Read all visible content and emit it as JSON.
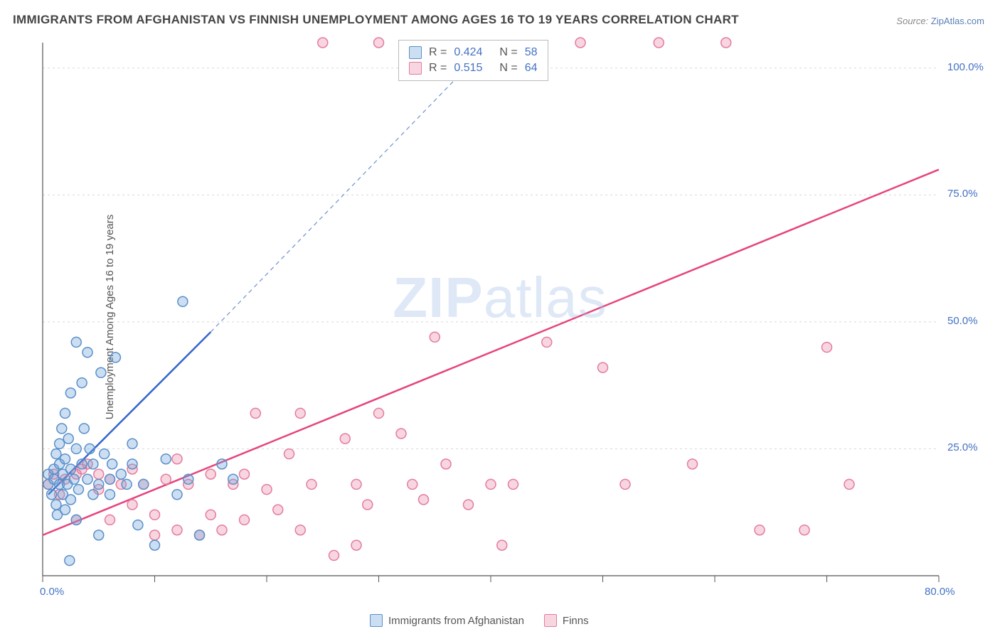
{
  "title": "IMMIGRANTS FROM AFGHANISTAN VS FINNISH UNEMPLOYMENT AMONG AGES 16 TO 19 YEARS CORRELATION CHART",
  "source_label": "Source:",
  "source_value": "ZipAtlas.com",
  "watermark_zip": "ZIP",
  "watermark_atlas": "atlas",
  "y_axis_label": "Unemployment Among Ages 16 to 19 years",
  "chart": {
    "type": "scatter",
    "background_color": "#ffffff",
    "grid_color": "#d8d8d8",
    "axis_color": "#555555",
    "xlim": [
      0,
      80
    ],
    "ylim": [
      0,
      105
    ],
    "x_ticks": [
      0,
      10,
      20,
      30,
      40,
      50,
      60,
      70,
      80
    ],
    "x_tick_labels": {
      "0": "0.0%",
      "80": "80.0%"
    },
    "y_ticks": [
      25,
      50,
      75,
      100
    ],
    "y_tick_labels": {
      "25": "25.0%",
      "50": "50.0%",
      "75": "75.0%",
      "100": "100.0%"
    },
    "marker_radius": 7,
    "marker_stroke_width": 1.5,
    "series": [
      {
        "name": "Immigrants from Afghanistan",
        "color_fill": "rgba(108,163,219,0.35)",
        "color_stroke": "#5a8fc9",
        "R": "0.424",
        "N": "58",
        "trend_line": {
          "x1": 0.5,
          "y1": 16,
          "x2": 15,
          "y2": 48,
          "color": "#3366cc",
          "width": 2.5
        },
        "trend_dash": {
          "x1": 15,
          "y1": 48,
          "x2": 40,
          "y2": 105,
          "color": "#6f8fcf",
          "dash": "6 5",
          "width": 1.2
        },
        "points": [
          [
            0.5,
            18
          ],
          [
            0.5,
            20
          ],
          [
            0.8,
            16
          ],
          [
            1,
            19
          ],
          [
            1,
            21
          ],
          [
            1.2,
            14
          ],
          [
            1.2,
            24
          ],
          [
            1.3,
            12
          ],
          [
            1.5,
            18
          ],
          [
            1.5,
            22
          ],
          [
            1.5,
            26
          ],
          [
            1.7,
            29
          ],
          [
            1.8,
            16
          ],
          [
            1.8,
            20
          ],
          [
            2,
            13
          ],
          [
            2,
            23
          ],
          [
            2,
            32
          ],
          [
            2.2,
            18
          ],
          [
            2.3,
            27
          ],
          [
            2.4,
            3
          ],
          [
            2.5,
            15
          ],
          [
            2.5,
            21
          ],
          [
            2.5,
            36
          ],
          [
            2.8,
            19
          ],
          [
            3,
            11
          ],
          [
            3,
            25
          ],
          [
            3,
            46
          ],
          [
            3.2,
            17
          ],
          [
            3.5,
            22
          ],
          [
            3.5,
            38
          ],
          [
            3.7,
            29
          ],
          [
            4,
            19
          ],
          [
            4,
            44
          ],
          [
            4.2,
            25
          ],
          [
            4.5,
            16
          ],
          [
            4.5,
            22
          ],
          [
            5,
            18
          ],
          [
            5,
            8
          ],
          [
            5.2,
            40
          ],
          [
            5.5,
            24
          ],
          [
            6,
            19
          ],
          [
            6,
            16
          ],
          [
            6.2,
            22
          ],
          [
            6.5,
            43
          ],
          [
            7,
            20
          ],
          [
            7.5,
            18
          ],
          [
            8,
            22
          ],
          [
            8,
            26
          ],
          [
            8.5,
            10
          ],
          [
            9,
            18
          ],
          [
            10,
            6
          ],
          [
            11,
            23
          ],
          [
            12,
            16
          ],
          [
            12.5,
            54
          ],
          [
            13,
            19
          ],
          [
            14,
            8
          ],
          [
            16,
            22
          ],
          [
            17,
            19
          ]
        ]
      },
      {
        "name": "Finns",
        "color_fill": "rgba(230,120,150,0.30)",
        "color_stroke": "#e57ba0",
        "R": "0.515",
        "N": "64",
        "trend_line": {
          "x1": 0,
          "y1": 8,
          "x2": 80,
          "y2": 80,
          "color": "#e6447d",
          "width": 2.5
        },
        "points": [
          [
            0.5,
            18
          ],
          [
            1,
            20
          ],
          [
            1.5,
            16
          ],
          [
            2,
            19
          ],
          [
            3,
            20
          ],
          [
            3,
            11
          ],
          [
            3.5,
            21
          ],
          [
            4,
            22
          ],
          [
            5,
            17
          ],
          [
            5,
            20
          ],
          [
            6,
            19
          ],
          [
            6,
            11
          ],
          [
            7,
            18
          ],
          [
            8,
            21
          ],
          [
            8,
            14
          ],
          [
            9,
            18
          ],
          [
            10,
            8
          ],
          [
            10,
            12
          ],
          [
            11,
            19
          ],
          [
            12,
            9
          ],
          [
            12,
            23
          ],
          [
            13,
            18
          ],
          [
            14,
            8
          ],
          [
            15,
            12
          ],
          [
            15,
            20
          ],
          [
            16,
            9
          ],
          [
            17,
            18
          ],
          [
            18,
            20
          ],
          [
            18,
            11
          ],
          [
            19,
            32
          ],
          [
            20,
            17
          ],
          [
            21,
            13
          ],
          [
            22,
            24
          ],
          [
            23,
            9
          ],
          [
            23,
            32
          ],
          [
            24,
            18
          ],
          [
            25,
            105
          ],
          [
            26,
            4
          ],
          [
            27,
            27
          ],
          [
            28,
            18
          ],
          [
            28,
            6
          ],
          [
            29,
            14
          ],
          [
            30,
            105
          ],
          [
            30,
            32
          ],
          [
            32,
            28
          ],
          [
            33,
            18
          ],
          [
            34,
            15
          ],
          [
            35,
            47
          ],
          [
            36,
            22
          ],
          [
            38,
            14
          ],
          [
            40,
            18
          ],
          [
            41,
            6
          ],
          [
            42,
            18
          ],
          [
            45,
            46
          ],
          [
            48,
            105
          ],
          [
            50,
            41
          ],
          [
            52,
            18
          ],
          [
            55,
            105
          ],
          [
            58,
            22
          ],
          [
            61,
            105
          ],
          [
            64,
            9
          ],
          [
            68,
            9
          ],
          [
            70,
            45
          ],
          [
            72,
            18
          ]
        ]
      }
    ]
  },
  "bottom_legend": [
    {
      "label": "Immigrants from Afghanistan",
      "fill": "rgba(108,163,219,0.35)",
      "stroke": "#5a8fc9"
    },
    {
      "label": "Finns",
      "fill": "rgba(230,120,150,0.30)",
      "stroke": "#e57ba0"
    }
  ]
}
